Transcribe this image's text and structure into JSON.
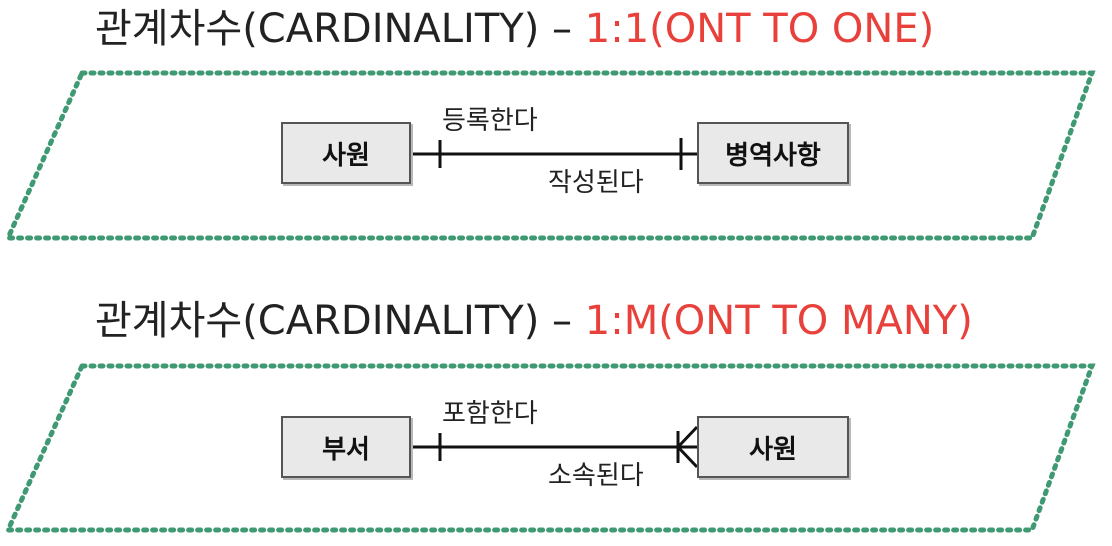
{
  "diagram1": {
    "heading_main": "관계차수(CARDINALITY) – ",
    "heading_accent": "1:1(ONT TO ONE)",
    "entity_left": "사원",
    "entity_right": "병역사항",
    "rel_top": "등록한다",
    "rel_bottom": "작성된다",
    "cardinality": "one-to-one"
  },
  "diagram2": {
    "heading_main": "관계차수(CARDINALITY) – ",
    "heading_accent": "1:M(ONT TO MANY)",
    "entity_left": "부서",
    "entity_right": "사원",
    "rel_top": "포함한다",
    "rel_bottom": "소속된다",
    "cardinality": "one-to-many"
  },
  "colors": {
    "accent": "#e8403a",
    "frame_dots": "#3f9a73",
    "entity_fill": "#e9e9e9"
  }
}
